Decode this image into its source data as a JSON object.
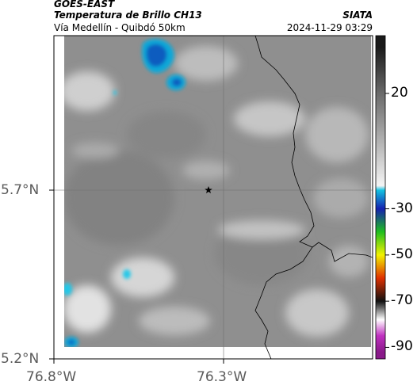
{
  "header": {
    "satellite": "GOES-EAST",
    "product": "Temperatura de Brillo CH13",
    "route": "Vía Medellín - Quibdó 50km",
    "organization": "SIATA",
    "datetime": "2024-11-29 03:29"
  },
  "map": {
    "lat_ticks": [
      "5.7°N",
      "5.2°N"
    ],
    "lon_ticks": [
      "76.8°W",
      "76.3°W"
    ],
    "marker": "star-marker",
    "colors": {
      "background_gray": "#8f8f8f",
      "cold_cloud": "#0aa7d8",
      "border_line": "#000000",
      "gridline": "#6f6f6f"
    }
  },
  "colorbar": {
    "tick_labels": [
      "20",
      "-30",
      "-50",
      "-70",
      "-90"
    ],
    "stops": [
      {
        "value": 40,
        "color": "#1a1a1a"
      },
      {
        "value": 20,
        "color": "#6a6a6a"
      },
      {
        "value": -20,
        "color": "#f4f4f4"
      },
      {
        "value": -22,
        "color": "#12c0e0"
      },
      {
        "value": -30,
        "color": "#1520b0"
      },
      {
        "value": -40,
        "color": "#1fbf1f"
      },
      {
        "value": -50,
        "color": "#f2f200"
      },
      {
        "value": -60,
        "color": "#e03000"
      },
      {
        "value": -70,
        "color": "#111111"
      },
      {
        "value": -78,
        "color": "#ffffff"
      },
      {
        "value": -85,
        "color": "#c030c0"
      },
      {
        "value": -92,
        "color": "#8a1a8a"
      }
    ]
  }
}
